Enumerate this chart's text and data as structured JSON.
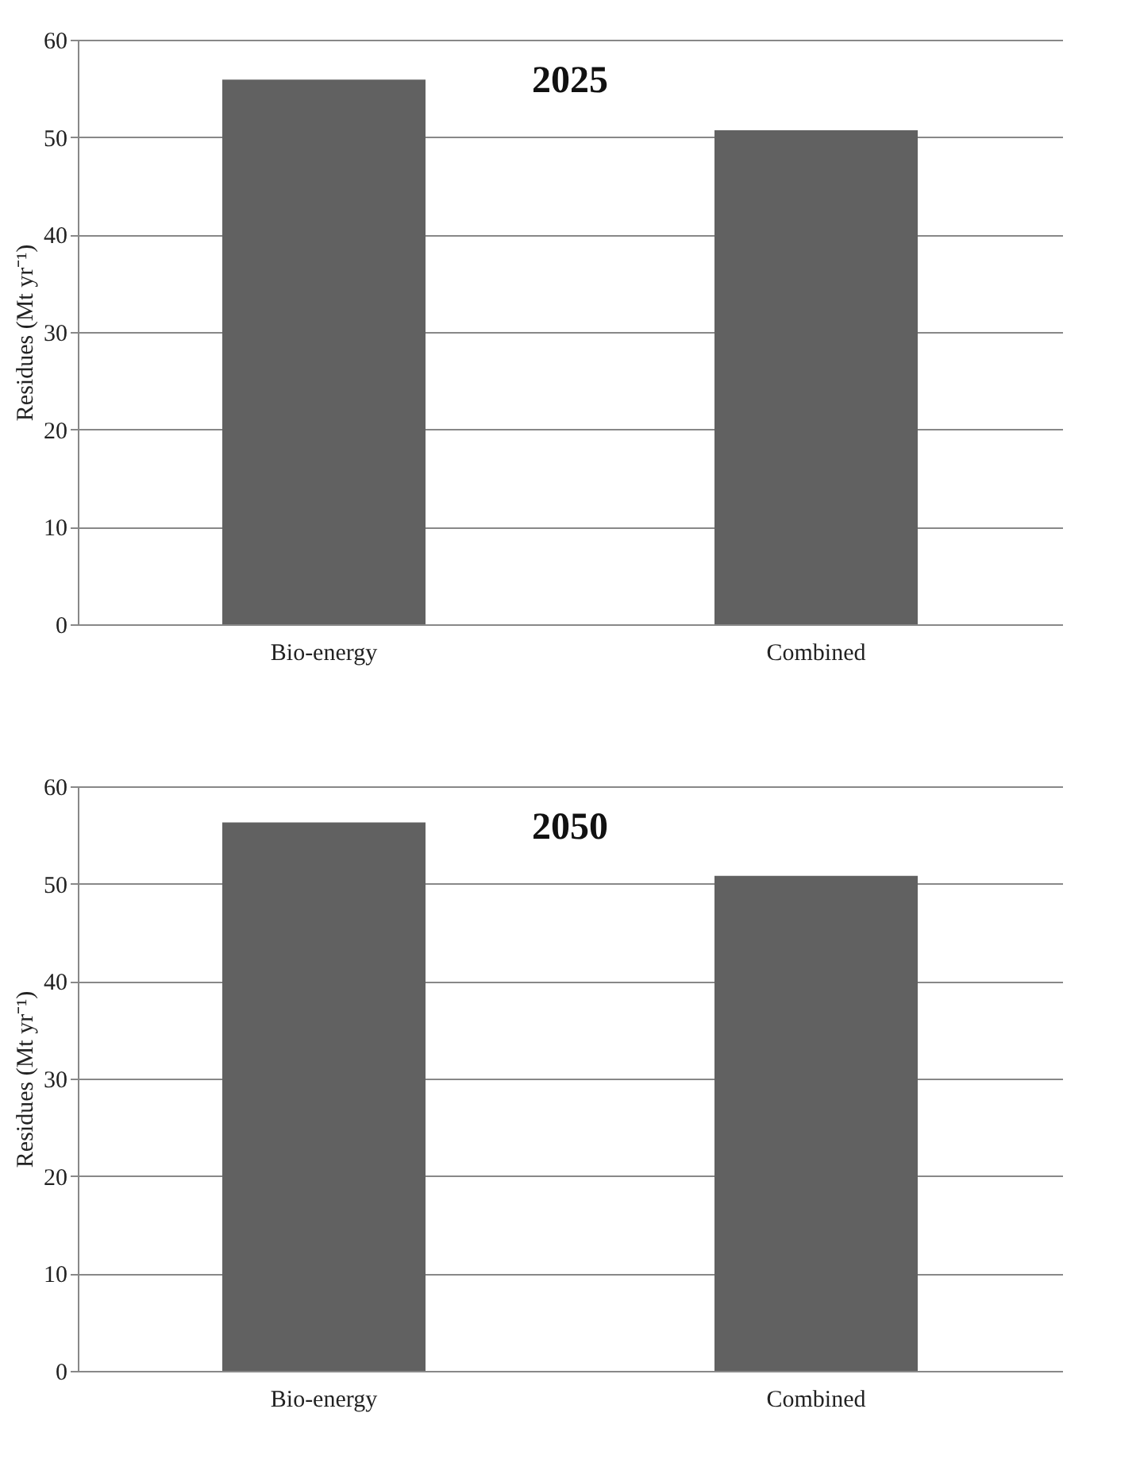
{
  "chart_data": [
    {
      "type": "bar",
      "title": "2025",
      "ylabel": "Residues (Mt yr⁻¹)",
      "categories": [
        "Bio-energy",
        "Combined"
      ],
      "values": [
        55.9,
        50.7
      ],
      "color": "#616161",
      "ylim": [
        0,
        60
      ],
      "yticks": [
        0,
        10,
        20,
        30,
        40,
        50,
        60
      ],
      "grid": "y"
    },
    {
      "type": "bar",
      "title": "2050",
      "ylabel": "Residues (Mt yr⁻¹)",
      "categories": [
        "Bio-energy",
        "Combined"
      ],
      "values": [
        56.3,
        50.8
      ],
      "color": "#616161",
      "ylim": [
        0,
        60
      ],
      "yticks": [
        0,
        10,
        20,
        30,
        40,
        50,
        60
      ],
      "grid": "y"
    }
  ]
}
